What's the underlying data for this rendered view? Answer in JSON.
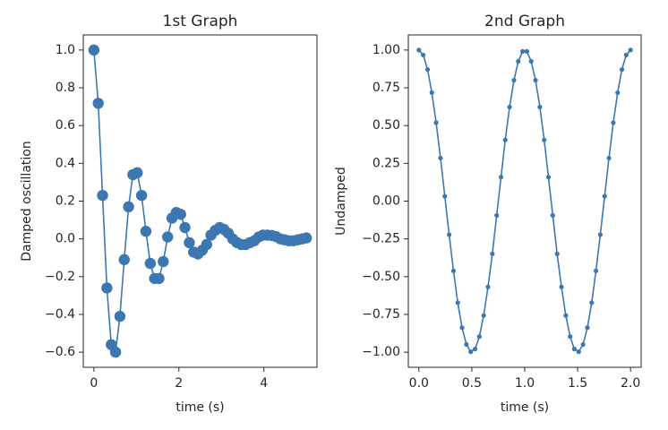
{
  "chart_data": [
    {
      "type": "line",
      "title": "1st Graph",
      "xlabel": "time (s)",
      "ylabel": "Damped oscillation",
      "xlim": [
        -0.25,
        5.25
      ],
      "ylim": [
        -0.68,
        1.08
      ],
      "x_ticks": [
        0,
        2,
        4
      ],
      "x_tick_labels": [
        "0",
        "2",
        "4"
      ],
      "y_ticks": [
        1.0,
        0.8,
        0.6,
        0.4,
        0.2,
        0.0,
        -0.2,
        -0.4,
        -0.6
      ],
      "y_tick_labels": [
        "1.0",
        "0.8",
        "0.6",
        "0.4",
        "0.2",
        "0.0",
        "−0.2",
        "−0.4",
        "−0.6"
      ],
      "grid": false,
      "color": "#3d77b2",
      "marker": "large-circle",
      "series": [
        {
          "x": [
            0.0,
            0.102,
            0.204,
            0.306,
            0.408,
            0.51,
            0.612,
            0.714,
            0.816,
            0.918,
            1.02,
            1.122,
            1.224,
            1.327,
            1.429,
            1.531,
            1.633,
            1.735,
            1.837,
            1.939,
            2.041,
            2.143,
            2.245,
            2.347,
            2.449,
            2.551,
            2.653,
            2.755,
            2.857,
            2.959,
            3.061,
            3.163,
            3.265,
            3.367,
            3.469,
            3.571,
            3.673,
            3.776,
            3.878,
            3.98,
            4.082,
            4.184,
            4.286,
            4.388,
            4.49,
            4.592,
            4.694,
            4.796,
            4.898,
            5.0
          ],
          "y": [
            1.0,
            0.718,
            0.23,
            -0.26,
            -0.56,
            -0.6,
            -0.41,
            -0.11,
            0.17,
            0.34,
            0.35,
            0.23,
            0.04,
            -0.13,
            -0.21,
            -0.21,
            -0.12,
            0.01,
            0.11,
            0.14,
            0.13,
            0.06,
            -0.02,
            -0.07,
            -0.08,
            -0.06,
            -0.03,
            0.02,
            0.045,
            0.06,
            0.05,
            0.03,
            0.0,
            -0.02,
            -0.03,
            -0.03,
            -0.02,
            -0.01,
            0.01,
            0.02,
            0.02,
            0.018,
            0.012,
            0.0,
            -0.005,
            -0.01,
            -0.01,
            -0.005,
            0.0,
            0.005
          ]
        }
      ]
    },
    {
      "type": "line",
      "title": "2nd Graph",
      "xlabel": "time (s)",
      "ylabel": "Undamped",
      "xlim": [
        -0.1,
        2.1
      ],
      "ylim": [
        -1.1,
        1.1
      ],
      "x_ticks": [
        0.0,
        0.5,
        1.0,
        1.5,
        2.0
      ],
      "x_tick_labels": [
        "0.0",
        "0.5",
        "1.0",
        "1.5",
        "2.0"
      ],
      "y_ticks": [
        1.0,
        0.75,
        0.5,
        0.25,
        0.0,
        -0.25,
        -0.5,
        -0.75,
        -1.0
      ],
      "y_tick_labels": [
        "1.00",
        "0.75",
        "0.50",
        "0.25",
        "0.00",
        "−0.25",
        "−0.50",
        "−0.75",
        "−1.00"
      ],
      "grid": false,
      "color": "#3d77b2",
      "marker": "small-dot",
      "series": [
        {
          "x": [
            0.0,
            0.041,
            0.082,
            0.122,
            0.163,
            0.204,
            0.245,
            0.286,
            0.327,
            0.367,
            0.408,
            0.449,
            0.49,
            0.531,
            0.571,
            0.612,
            0.653,
            0.694,
            0.735,
            0.776,
            0.816,
            0.857,
            0.898,
            0.939,
            0.98,
            1.02,
            1.061,
            1.102,
            1.143,
            1.184,
            1.224,
            1.265,
            1.306,
            1.347,
            1.388,
            1.429,
            1.469,
            1.51,
            1.551,
            1.592,
            1.633,
            1.673,
            1.714,
            1.755,
            1.796,
            1.837,
            1.878,
            1.918,
            1.959,
            2.0
          ],
          "y": [
            1.0,
            0.967,
            0.871,
            0.718,
            0.519,
            0.285,
            0.032,
            -0.222,
            -0.462,
            -0.672,
            -0.838,
            -0.949,
            -0.997,
            -0.979,
            -0.897,
            -0.757,
            -0.568,
            -0.349,
            -0.095,
            0.159,
            0.405,
            0.623,
            0.8,
            0.925,
            0.991,
            0.991,
            0.925,
            0.8,
            0.623,
            0.405,
            0.159,
            -0.095,
            -0.349,
            -0.568,
            -0.757,
            -0.897,
            -0.979,
            -0.997,
            -0.949,
            -0.838,
            -0.672,
            -0.462,
            -0.222,
            0.032,
            0.285,
            0.519,
            0.718,
            0.871,
            0.967,
            1.0
          ]
        }
      ]
    }
  ]
}
